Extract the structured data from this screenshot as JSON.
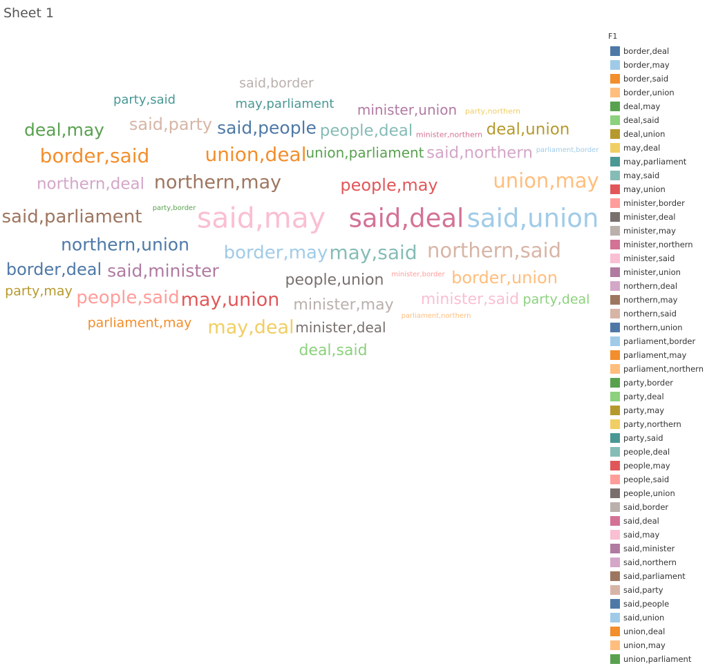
{
  "sheet": {
    "title": "Sheet 1"
  },
  "legend": {
    "title": "F1",
    "items": [
      {
        "label": "border,deal",
        "color": "#4e79a7"
      },
      {
        "label": "border,may",
        "color": "#a0cbe8"
      },
      {
        "label": "border,said",
        "color": "#f28e2b"
      },
      {
        "label": "border,union",
        "color": "#ffbe7d"
      },
      {
        "label": "deal,may",
        "color": "#59a14f"
      },
      {
        "label": "deal,said",
        "color": "#8cd17d"
      },
      {
        "label": "deal,union",
        "color": "#b6992d"
      },
      {
        "label": "may,deal",
        "color": "#f1ce63"
      },
      {
        "label": "may,parliament",
        "color": "#499894"
      },
      {
        "label": "may,said",
        "color": "#86bcb6"
      },
      {
        "label": "may,union",
        "color": "#e15759"
      },
      {
        "label": "minister,border",
        "color": "#ff9d9a"
      },
      {
        "label": "minister,deal",
        "color": "#79706e"
      },
      {
        "label": "minister,may",
        "color": "#bab0ac"
      },
      {
        "label": "minister,northern",
        "color": "#d37295"
      },
      {
        "label": "minister,said",
        "color": "#fabfd2"
      },
      {
        "label": "minister,union",
        "color": "#b07aa1"
      },
      {
        "label": "northern,deal",
        "color": "#d4a6c8"
      },
      {
        "label": "northern,may",
        "color": "#9d7660"
      },
      {
        "label": "northern,said",
        "color": "#d7b5a6"
      },
      {
        "label": "northern,union",
        "color": "#4e79a7"
      },
      {
        "label": "parliament,border",
        "color": "#a0cbe8"
      },
      {
        "label": "parliament,may",
        "color": "#f28e2b"
      },
      {
        "label": "parliament,northern",
        "color": "#ffbe7d"
      },
      {
        "label": "party,border",
        "color": "#59a14f"
      },
      {
        "label": "party,deal",
        "color": "#8cd17d"
      },
      {
        "label": "party,may",
        "color": "#b6992d"
      },
      {
        "label": "party,northern",
        "color": "#f1ce63"
      },
      {
        "label": "party,said",
        "color": "#499894"
      },
      {
        "label": "people,deal",
        "color": "#86bcb6"
      },
      {
        "label": "people,may",
        "color": "#e15759"
      },
      {
        "label": "people,said",
        "color": "#ff9d9a"
      },
      {
        "label": "people,union",
        "color": "#79706e"
      },
      {
        "label": "said,border",
        "color": "#bab0ac"
      },
      {
        "label": "said,deal",
        "color": "#d37295"
      },
      {
        "label": "said,may",
        "color": "#fabfd2"
      },
      {
        "label": "said,minister",
        "color": "#b07aa1"
      },
      {
        "label": "said,northern",
        "color": "#d4a6c8"
      },
      {
        "label": "said,parliament",
        "color": "#9d7660"
      },
      {
        "label": "said,party",
        "color": "#d7b5a6"
      },
      {
        "label": "said,people",
        "color": "#4e79a7"
      },
      {
        "label": "said,union",
        "color": "#a0cbe8"
      },
      {
        "label": "union,deal",
        "color": "#f28e2b"
      },
      {
        "label": "union,may",
        "color": "#ffbe7d"
      },
      {
        "label": "union,parliament",
        "color": "#59a14f"
      }
    ]
  },
  "chart_data": {
    "type": "wordcloud",
    "title": "Sheet 1",
    "color_field": "F1",
    "words": [
      {
        "text": "said,border",
        "weight": 4
      },
      {
        "text": "party,said",
        "weight": 4
      },
      {
        "text": "may,parliament",
        "weight": 4
      },
      {
        "text": "minister,union",
        "weight": 4.5
      },
      {
        "text": "party,northern",
        "weight": 1
      },
      {
        "text": "deal,may",
        "weight": 6
      },
      {
        "text": "said,party",
        "weight": 6
      },
      {
        "text": "said,people",
        "weight": 6
      },
      {
        "text": "people,deal",
        "weight": 5.5
      },
      {
        "text": "minister,northern",
        "weight": 1
      },
      {
        "text": "deal,union",
        "weight": 5.5
      },
      {
        "text": "border,said",
        "weight": 7
      },
      {
        "text": "union,deal",
        "weight": 7
      },
      {
        "text": "union,parliament",
        "weight": 4.5
      },
      {
        "text": "said,northern",
        "weight": 5.5
      },
      {
        "text": "parliament,border",
        "weight": 0.5
      },
      {
        "text": "northern,deal",
        "weight": 5.5
      },
      {
        "text": "northern,may",
        "weight": 7
      },
      {
        "text": "people,may",
        "weight": 6
      },
      {
        "text": "union,may",
        "weight": 7.5
      },
      {
        "text": "said,parliament",
        "weight": 6.5
      },
      {
        "text": "party,border",
        "weight": 0.5
      },
      {
        "text": "said,may",
        "weight": 10
      },
      {
        "text": "said,deal",
        "weight": 9.5
      },
      {
        "text": "said,union",
        "weight": 9.5
      },
      {
        "text": "northern,union",
        "weight": 6.5
      },
      {
        "text": "border,may",
        "weight": 6.5
      },
      {
        "text": "may,said",
        "weight": 7.5
      },
      {
        "text": "northern,said",
        "weight": 7.5
      },
      {
        "text": "border,deal",
        "weight": 6
      },
      {
        "text": "said,minister",
        "weight": 6.5
      },
      {
        "text": "party,may",
        "weight": 4.5
      },
      {
        "text": "people,union",
        "weight": 5.5
      },
      {
        "text": "minister,border",
        "weight": 0.5
      },
      {
        "text": "border,union",
        "weight": 6
      },
      {
        "text": "people,said",
        "weight": 6.5
      },
      {
        "text": "may,union",
        "weight": 7
      },
      {
        "text": "minister,may",
        "weight": 5.5
      },
      {
        "text": "minister,said",
        "weight": 5.5
      },
      {
        "text": "party,deal",
        "weight": 4.5
      },
      {
        "text": "parliament,northern",
        "weight": 0.5
      },
      {
        "text": "parliament,may",
        "weight": 4.5
      },
      {
        "text": "may,deal",
        "weight": 6.5
      },
      {
        "text": "minister,deal",
        "weight": 4.5
      },
      {
        "text": "deal,said",
        "weight": 5.5
      }
    ]
  }
}
